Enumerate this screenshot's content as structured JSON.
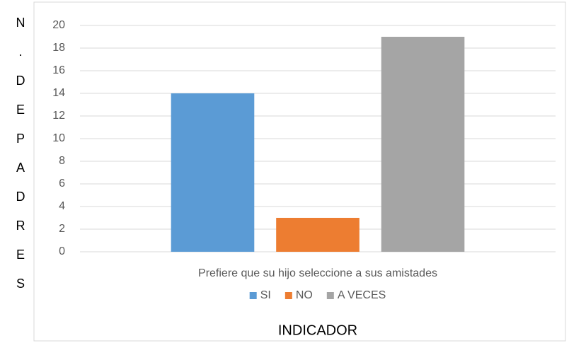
{
  "chart_data": {
    "type": "bar",
    "categories": [
      "Prefiere que su hijo seleccione a sus amistades"
    ],
    "series": [
      {
        "name": "SI",
        "color": "#5b9bd5",
        "values": [
          14
        ]
      },
      {
        "name": "NO",
        "color": "#ed7d31",
        "values": [
          3
        ]
      },
      {
        "name": "A VECES",
        "color": "#a5a5a5",
        "values": [
          19
        ]
      }
    ],
    "ylim": [
      0,
      20
    ],
    "yticks": [
      0,
      2,
      4,
      6,
      8,
      10,
      12,
      14,
      16,
      18,
      20
    ],
    "grid": true,
    "legend": "bottom",
    "y_label": "N.DEPADRES",
    "x_label": "INDICADOR"
  }
}
